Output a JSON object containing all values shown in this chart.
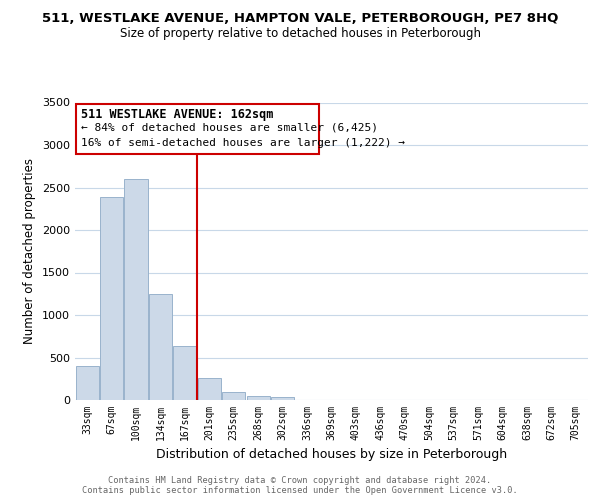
{
  "title": "511, WESTLAKE AVENUE, HAMPTON VALE, PETERBOROUGH, PE7 8HQ",
  "subtitle": "Size of property relative to detached houses in Peterborough",
  "xlabel": "Distribution of detached houses by size in Peterborough",
  "ylabel": "Number of detached properties",
  "bar_color": "#ccd9e8",
  "bar_edge_color": "#99b3cc",
  "vline_color": "#cc0000",
  "annotation_box_edge": "#cc0000",
  "annotation_title": "511 WESTLAKE AVENUE: 162sqm",
  "annotation_line1": "← 84% of detached houses are smaller (6,425)",
  "annotation_line2": "16% of semi-detached houses are larger (1,222) →",
  "categories": [
    "33sqm",
    "67sqm",
    "100sqm",
    "134sqm",
    "167sqm",
    "201sqm",
    "235sqm",
    "268sqm",
    "302sqm",
    "336sqm",
    "369sqm",
    "403sqm",
    "436sqm",
    "470sqm",
    "504sqm",
    "537sqm",
    "571sqm",
    "604sqm",
    "638sqm",
    "672sqm",
    "705sqm"
  ],
  "values": [
    400,
    2390,
    2600,
    1250,
    640,
    255,
    100,
    50,
    30,
    0,
    0,
    0,
    0,
    0,
    0,
    0,
    0,
    0,
    0,
    0,
    0
  ],
  "vline_pos": 4.5,
  "ylim": [
    0,
    3500
  ],
  "yticks": [
    0,
    500,
    1000,
    1500,
    2000,
    2500,
    3000,
    3500
  ],
  "footer1": "Contains HM Land Registry data © Crown copyright and database right 2024.",
  "footer2": "Contains public sector information licensed under the Open Government Licence v3.0.",
  "background_color": "#ffffff",
  "grid_color": "#c8d8e8"
}
